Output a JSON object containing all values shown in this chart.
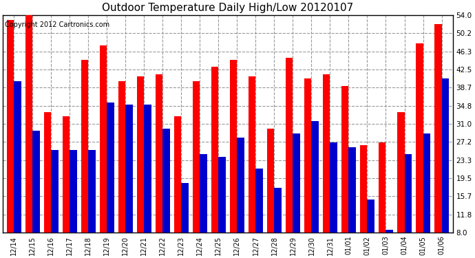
{
  "title": "Outdoor Temperature Daily High/Low 20120107",
  "copyright": "Copyright 2012 Cartronics.com",
  "dates": [
    "12/14",
    "12/15",
    "12/16",
    "12/17",
    "12/18",
    "12/19",
    "12/20",
    "12/21",
    "12/22",
    "12/23",
    "12/24",
    "12/25",
    "12/26",
    "12/27",
    "12/28",
    "12/29",
    "12/30",
    "12/31",
    "01/01",
    "01/02",
    "01/03",
    "01/04",
    "01/05",
    "01/06"
  ],
  "highs": [
    53.0,
    54.0,
    33.5,
    32.5,
    44.5,
    47.5,
    40.0,
    41.0,
    41.5,
    32.5,
    40.0,
    43.0,
    44.5,
    41.0,
    30.0,
    45.0,
    40.5,
    41.5,
    39.0,
    26.5,
    27.0,
    33.5,
    48.0,
    52.0
  ],
  "lows": [
    40.0,
    29.5,
    25.5,
    25.5,
    25.5,
    35.5,
    35.0,
    35.0,
    30.0,
    18.5,
    24.5,
    24.0,
    28.0,
    21.5,
    17.5,
    29.0,
    31.5,
    27.0,
    26.0,
    15.0,
    8.5,
    24.5,
    29.0,
    40.5
  ],
  "high_color": "#ff0000",
  "low_color": "#0000cc",
  "bg_color": "#ffffff",
  "plot_bg_color": "#ffffff",
  "grid_color": "#999999",
  "yticks": [
    8.0,
    11.8,
    15.7,
    19.5,
    23.3,
    27.2,
    31.0,
    34.8,
    38.7,
    42.5,
    46.3,
    50.2,
    54.0
  ],
  "ymin": 8.0,
  "ymax": 54.0,
  "title_fontsize": 11,
  "copyright_fontsize": 7,
  "bar_width": 0.38,
  "tick_fontsize": 7,
  "ytick_fontsize": 7.5
}
